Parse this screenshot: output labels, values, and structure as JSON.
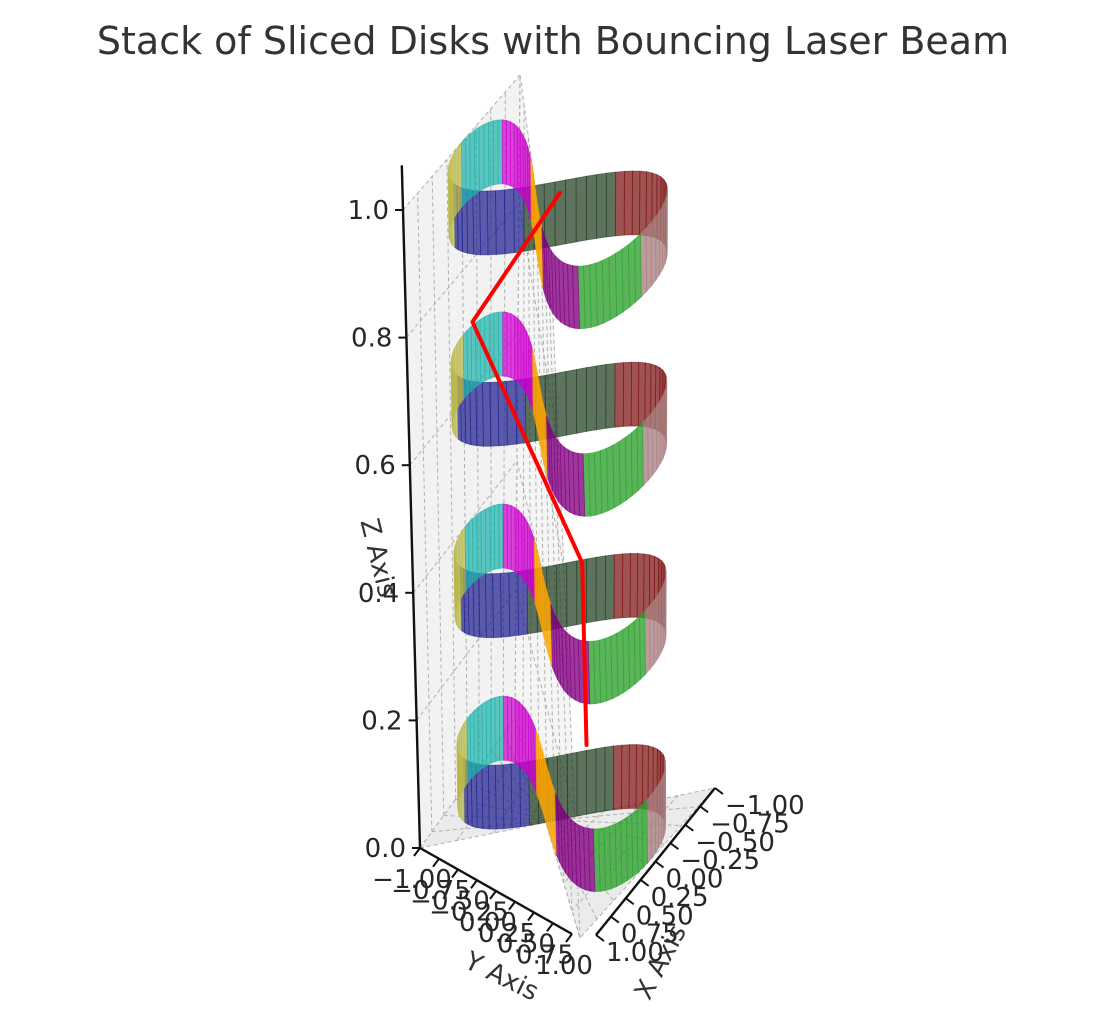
{
  "chart_data": {
    "type": "3d-surface-with-line",
    "title": "Stack of Sliced Disks with Bouncing Laser Beam",
    "xlabel": "X Axis",
    "ylabel": "Y Axis",
    "zlabel": "Z Axis",
    "xlim": [
      -1.0,
      1.0
    ],
    "ylim": [
      -1.0,
      1.0
    ],
    "zlim": [
      0.0,
      1.0
    ],
    "x_ticks": [
      "−1.00",
      "−0.75",
      "−0.50",
      "−0.25",
      "0.00",
      "0.25",
      "0.50",
      "0.75",
      "1.00"
    ],
    "y_ticks": [
      "−1.00",
      "−0.75",
      "−0.50",
      "−0.25",
      "0.00",
      "0.25",
      "0.50",
      "0.75",
      "1.00"
    ],
    "z_ticks": [
      "0.0",
      "0.2",
      "0.4",
      "0.6",
      "0.8",
      "1.0"
    ],
    "grid": true,
    "disks": {
      "count": 4,
      "radius": 1.0,
      "height": 0.1,
      "z_bottoms": [
        0.0,
        0.3,
        0.6,
        0.9
      ],
      "slice_colors": [
        "#2ca02c",
        "#800080",
        "#ffa500",
        "#cc00cc",
        "#20b2aa",
        "#b8b84a",
        "#1f1f8f",
        "#1f3d1f",
        "#7a0f0f",
        "#a87f80"
      ]
    },
    "laser": {
      "color": "#ff0000",
      "points": [
        {
          "x": 0.6,
          "y": 0.5,
          "z": 0.2
        },
        {
          "x": 0.55,
          "y": 0.45,
          "z": 0.48
        },
        {
          "x": -0.8,
          "y": -0.2,
          "z": 0.75
        },
        {
          "x": 0.1,
          "y": 0.0,
          "z": 1.0
        }
      ]
    }
  }
}
